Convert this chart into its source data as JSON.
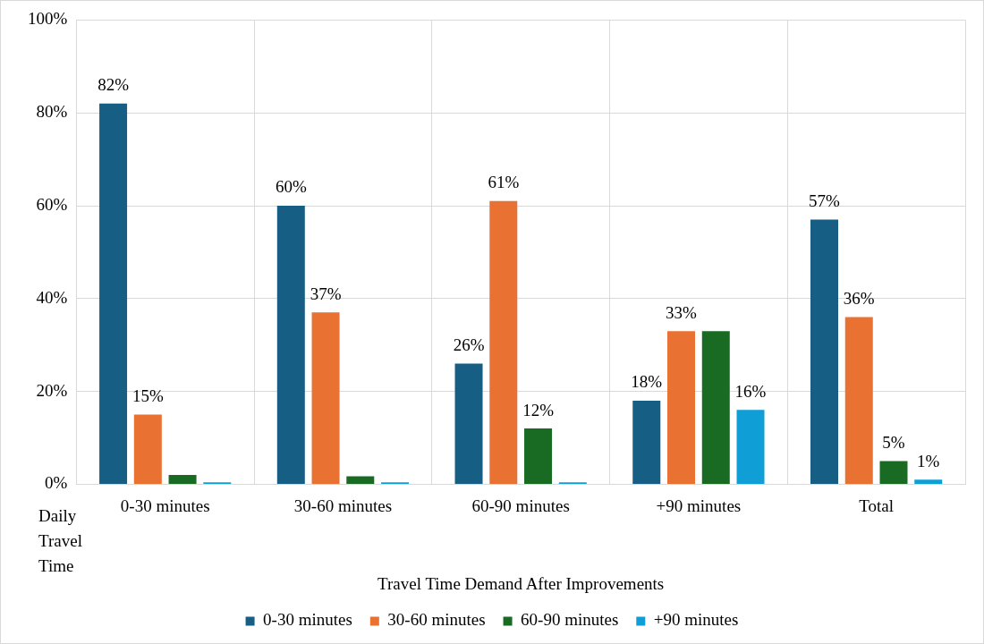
{
  "chart_data": {
    "type": "bar",
    "xlabel": "Travel Time Demand After Improvements",
    "categories": [
      "0-30 minutes",
      "30-60 minutes",
      "60-90 minutes",
      "+90 minutes",
      "Total"
    ],
    "series": [
      {
        "name": "0-30 minutes",
        "color": "#165e83",
        "values": [
          82,
          60,
          26,
          18,
          57
        ],
        "value_labels": [
          "82%",
          "60%",
          "26%",
          "18%",
          "57%"
        ]
      },
      {
        "name": "30-60 minutes",
        "color": "#e97132",
        "values": [
          15,
          37,
          61,
          33,
          36
        ],
        "value_labels": [
          "15%",
          "37%",
          "61%",
          "33%",
          "36%"
        ]
      },
      {
        "name": "60-90 minutes",
        "color": "#196b24",
        "values": [
          2,
          1.7,
          12,
          33,
          5
        ],
        "value_labels": [
          null,
          null,
          "12%",
          null,
          "5%"
        ]
      },
      {
        "name": "+90 minutes",
        "color": "#0f9ed5",
        "values": [
          0.4,
          0.4,
          0.4,
          16,
          1
        ],
        "value_labels": [
          null,
          null,
          null,
          "16%",
          "1%"
        ]
      }
    ],
    "ylim": [
      0,
      100
    ],
    "yticks": [
      {
        "value": 0,
        "label": "0%"
      },
      {
        "value": 20,
        "label": "20%"
      },
      {
        "value": 40,
        "label": "40%"
      },
      {
        "value": 60,
        "label": "60%"
      },
      {
        "value": 80,
        "label": "80%"
      },
      {
        "value": 100,
        "label": "100%"
      }
    ],
    "grid": true,
    "legend": "bottom",
    "annotations": [
      "Daily Travel Time"
    ]
  }
}
